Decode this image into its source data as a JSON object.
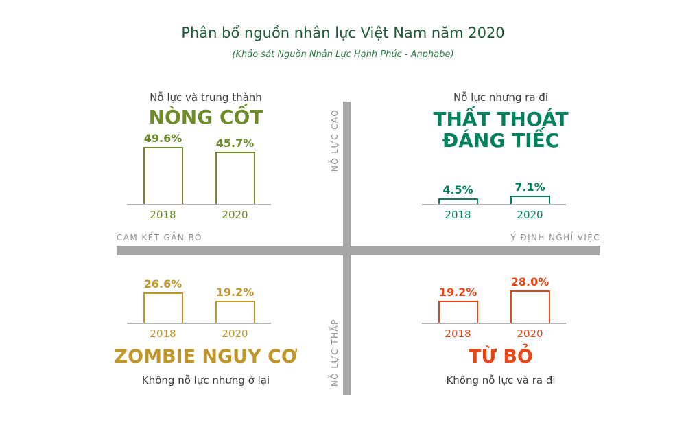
{
  "header": {
    "title": "Phân bổ nguồn nhân lực Việt Nam năm 2020",
    "subtitle": "(Khảo sát Nguồn Nhân Lực Hạnh Phúc - Anphabe)"
  },
  "axes": {
    "vertical_top": "NỖ LỰC CAO",
    "vertical_bottom": "NỖ LỰC THẤP",
    "horizontal_left": "CAM KẾT GẮN BÓ",
    "horizontal_right": "Ý ĐỊNH NGHỈ VIỆC",
    "axis_color": "#a6a6a6"
  },
  "chart_data": {
    "type": "bar",
    "categories": [
      "2018",
      "2020"
    ],
    "unit": "%",
    "ylim": [
      0,
      60
    ],
    "title": "Phân bổ nguồn nhân lực Việt Nam năm 2020",
    "quadrants": [
      {
        "position": "top-left",
        "subtitle": "Nỗ lực và trung thành",
        "title": "NÒNG CỐT",
        "color": "#6d8b28",
        "values": [
          49.6,
          45.7
        ],
        "labels": [
          "49.6%",
          "45.7%"
        ]
      },
      {
        "position": "top-right",
        "subtitle": "Nỗ lực nhưng ra đi",
        "title": "THẤT THOÁT ĐÁNG TIẾC",
        "color": "#00825d",
        "values": [
          4.5,
          7.1
        ],
        "labels": [
          "4.5%",
          "7.1%"
        ]
      },
      {
        "position": "bottom-left",
        "title": "ZOMBIE NGUY CƠ",
        "subtitle": "Không nỗ lực nhưng ở lại",
        "color": "#bf9627",
        "values": [
          26.6,
          19.2
        ],
        "labels": [
          "26.6%",
          "19.2%"
        ]
      },
      {
        "position": "bottom-right",
        "title": "TỪ BỎ",
        "subtitle": "Không nỗ lực và ra đi",
        "color": "#ea4517",
        "values": [
          19.2,
          28.0
        ],
        "labels": [
          "19.2%",
          "28.0%"
        ]
      }
    ]
  }
}
